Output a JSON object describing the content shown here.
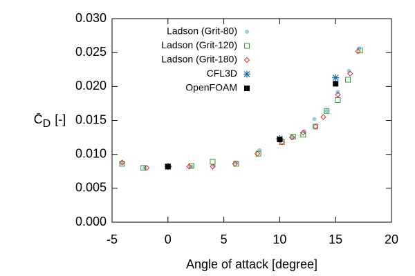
{
  "chart_data": {
    "type": "scatter",
    "xlabel": "Angle of attack [degree]",
    "ylabel": {
      "symbol": "C̄",
      "subscript": "D",
      "unit": "[-]"
    },
    "xlim": [
      -5,
      20
    ],
    "xticks": [
      -5,
      0,
      5,
      10,
      15,
      20
    ],
    "ylim": [
      0,
      0.03
    ],
    "yticks": [
      {
        "value": 0,
        "label": "0.000"
      },
      {
        "value": 0.005,
        "label": "0.005"
      },
      {
        "value": 0.01,
        "label": "0.010"
      },
      {
        "value": 0.015,
        "label": "0.015"
      },
      {
        "value": 0.02,
        "label": "0.020"
      },
      {
        "value": 0.025,
        "label": "0.025"
      },
      {
        "value": 0.03,
        "label": "0.030"
      }
    ],
    "legend": "upper-left",
    "series": [
      {
        "name": "Ladson (Grit-80)",
        "color": "#9ecae1",
        "marker": "circle",
        "x": [
          -4.1,
          -2.1,
          0,
          2.1,
          4.1,
          6.1,
          8.2,
          10.1,
          11.2,
          12.2,
          13.1,
          14.2,
          15.2,
          16.2,
          17.1
        ],
        "values": [
          0.0087,
          0.008,
          0.0082,
          0.0082,
          0.0083,
          0.0088,
          0.0106,
          0.012,
          0.0125,
          0.0134,
          0.0152,
          0.0164,
          0.0192,
          0.0223,
          0.0256
        ]
      },
      {
        "name": "Ladson (Grit-120)",
        "color": "#2e9a2e",
        "marker": "square-open",
        "x": [
          -4.1,
          -2.2,
          0,
          2.1,
          4.0,
          6.1,
          8.1,
          10.2,
          11.2,
          12.1,
          13.2,
          14.2,
          15.2,
          16.1,
          17.2
        ],
        "values": [
          0.0086,
          0.008,
          0.0082,
          0.0083,
          0.0089,
          0.0086,
          0.0101,
          0.0118,
          0.0126,
          0.0129,
          0.0141,
          0.0164,
          0.018,
          0.021,
          0.0253
        ]
      },
      {
        "name": "Ladson (Grit-180)",
        "color": "#e02a2a",
        "marker": "diamond-open",
        "x": [
          -4.1,
          -1.9,
          0.1,
          1.9,
          4.0,
          6.0,
          8.0,
          10.2,
          11.1,
          12.1,
          13.2,
          13.9,
          15.2,
          16.3,
          17.0
        ],
        "values": [
          0.0088,
          0.008,
          0.0082,
          0.0082,
          0.0082,
          0.0086,
          0.0101,
          0.0118,
          0.0125,
          0.0132,
          0.0141,
          0.0155,
          0.0188,
          0.0219,
          0.0252
        ]
      },
      {
        "name": "CFL3D",
        "color": "#1f6fb0",
        "marker": "asterisk",
        "x": [
          0,
          10,
          15
        ],
        "values": [
          0.0082,
          0.0123,
          0.0213
        ]
      },
      {
        "name": "OpenFOAM",
        "color": "#000000",
        "marker": "square-filled",
        "x": [
          0,
          10,
          15
        ],
        "values": [
          0.0082,
          0.0122,
          0.0204
        ]
      }
    ]
  }
}
